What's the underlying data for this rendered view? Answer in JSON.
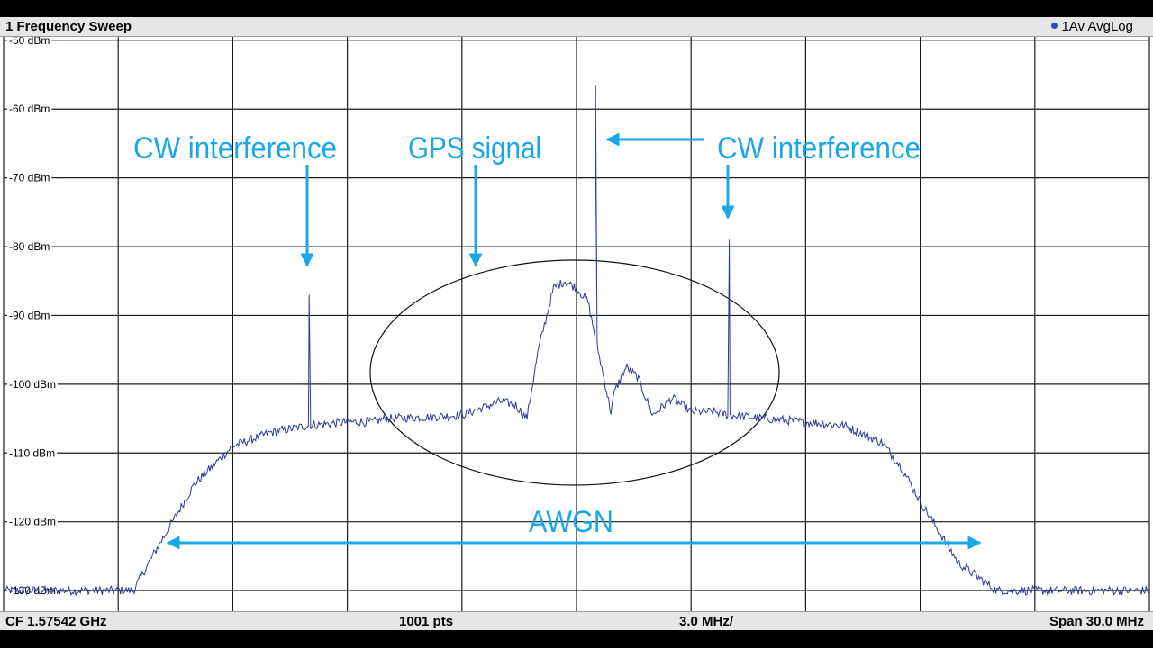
{
  "window": {
    "title": "1 Frequency Sweep",
    "trace_indicator": "1Av AvgLog",
    "trace_dot_color": "#2a4cc8"
  },
  "status": {
    "center_freq": "CF 1.57542 GHz",
    "points": "1001 pts",
    "per_div": "3.0 MHz/",
    "span": "Span 30.0 MHz"
  },
  "annotations": {
    "cw_left": "CW interference",
    "gps": "GPS signal",
    "cw_right": "CW interference",
    "awgn": "AWGN",
    "accent_color": "#1aa7e8"
  },
  "chart_data": {
    "type": "line",
    "xlim": [
      -15,
      15
    ],
    "xunit": "MHz offset from CF",
    "ylim": [
      -133,
      -49.5
    ],
    "yticks": [
      -50,
      -60,
      -70,
      -80,
      -90,
      -100,
      -110,
      -120,
      -130
    ],
    "ytick_labels": [
      "-50 dBm",
      "-60 dBm",
      "-70 dBm",
      "-80 dBm",
      "-90 dBm",
      "-100 dBm",
      "-110 dBm",
      "-120 dBm",
      "-130 dBm"
    ],
    "grid": true,
    "trace_color": "#2b3a9e",
    "series": [
      {
        "x": [
          -15,
          -14,
          -13,
          -12,
          -11.6,
          -11,
          -10,
          -9,
          -8,
          -7,
          -6,
          -5.35,
          -5,
          -4,
          -3,
          -2.5,
          -2,
          -1.6,
          -1.3,
          -1.0,
          -0.6,
          -0.3,
          0,
          0.3,
          0.6,
          0.9,
          1.0,
          1.3,
          1.6,
          2.0,
          2.5,
          3.0,
          3.6,
          4.0,
          5,
          6,
          7,
          8,
          8.5,
          9,
          10,
          11,
          11.4,
          12,
          13,
          14,
          15
        ],
        "y": [
          -130.0,
          -130.0,
          -130.0,
          -130.0,
          -130.0,
          -124.0,
          -114.5,
          -109.0,
          -107.0,
          -106.0,
          -105.5,
          -105.5,
          -105.0,
          -104.8,
          -104.5,
          -103.5,
          -102.5,
          -103.0,
          -105.0,
          -95.0,
          -86.0,
          -85.0,
          -86.0,
          -88.0,
          -96.0,
          -104.0,
          -101.0,
          -97.5,
          -99.0,
          -104.5,
          -102.0,
          -104.0,
          -104.0,
          -104.5,
          -105.0,
          -105.5,
          -106.0,
          -108.5,
          -112.0,
          -117.0,
          -126.0,
          -130.0,
          -130.0,
          -130.0,
          -130.0,
          -130.0,
          -130.0
        ]
      },
      {
        "x": [
          -7.0
        ],
        "y": [
          -87.0
        ]
      },
      {
        "x": [
          0.5
        ],
        "y": [
          -56.5
        ]
      },
      {
        "x": [
          4.0
        ],
        "y": [
          -79.0
        ]
      }
    ]
  }
}
